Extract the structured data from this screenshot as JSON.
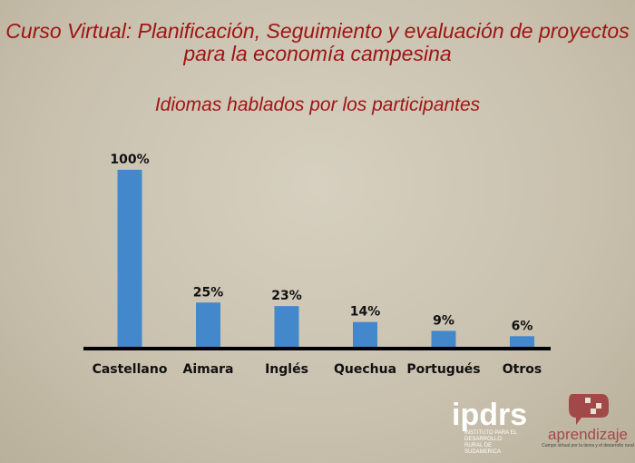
{
  "header": {
    "title": "Curso Virtual: Planificación, Seguimiento y evaluación de proyectos para la economía campesina"
  },
  "chart_data": {
    "type": "bar",
    "title": "Idiomas hablados por los participantes",
    "categories": [
      "Castellano",
      "Aimara",
      "Inglés",
      "Quechua",
      "Portugués",
      "Otros"
    ],
    "values": [
      100,
      25,
      23,
      14,
      9,
      6
    ],
    "data_labels": [
      "100%",
      "25%",
      "23%",
      "14%",
      "9%",
      "6%"
    ],
    "ylim": [
      0,
      100
    ],
    "grid": false,
    "bar_color": "#4488cc"
  },
  "logos": {
    "ipdrs": "ipdrs",
    "ipdrs_sub": "INSTITUTO PARA EL DESARROLLO RURAL DE SUDAMERICA",
    "aprendizaje": "aprendizaje",
    "aprendizaje_sub": "Campo virtual por la tierra y el desarrollo rural"
  },
  "colors": {
    "title": "#9e1414",
    "background": "#c9c1ae"
  }
}
